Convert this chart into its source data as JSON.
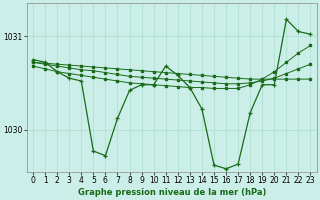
{
  "xlabel": "Graphe pression niveau de la mer (hPa)",
  "bg_color": "#cceee8",
  "line_color": "#1a6b1a",
  "grid_color": "#aaddcc",
  "ylim": [
    1029.55,
    1031.35
  ],
  "xlim": [
    -0.5,
    23.5
  ],
  "yticks": [
    1030,
    1031
  ],
  "xticks": [
    0,
    1,
    2,
    3,
    4,
    5,
    6,
    7,
    8,
    9,
    10,
    11,
    12,
    13,
    14,
    15,
    16,
    17,
    18,
    19,
    20,
    21,
    22,
    23
  ],
  "series_main": [
    1030.75,
    1030.72,
    1030.62,
    1030.55,
    1030.52,
    1029.77,
    1029.72,
    1030.12,
    1030.42,
    1030.48,
    1030.48,
    1030.68,
    1030.58,
    1030.45,
    1030.22,
    1029.62,
    1029.58,
    1029.63,
    1030.18,
    1030.48,
    1030.48,
    1031.18,
    1031.05,
    1031.02
  ],
  "series_line1": [
    1030.72,
    1030.71,
    1030.7,
    1030.69,
    1030.68,
    1030.67,
    1030.66,
    1030.65,
    1030.64,
    1030.63,
    1030.62,
    1030.61,
    1030.6,
    1030.59,
    1030.58,
    1030.57,
    1030.56,
    1030.55,
    1030.54,
    1030.54,
    1030.54,
    1030.54,
    1030.54,
    1030.54
  ],
  "series_line2": [
    1030.72,
    1030.7,
    1030.68,
    1030.66,
    1030.64,
    1030.63,
    1030.61,
    1030.59,
    1030.57,
    1030.56,
    1030.55,
    1030.54,
    1030.53,
    1030.52,
    1030.51,
    1030.5,
    1030.49,
    1030.49,
    1030.5,
    1030.52,
    1030.55,
    1030.6,
    1030.65,
    1030.7
  ],
  "series_line3": [
    1030.68,
    1030.65,
    1030.62,
    1030.6,
    1030.58,
    1030.56,
    1030.54,
    1030.52,
    1030.5,
    1030.49,
    1030.48,
    1030.47,
    1030.46,
    1030.45,
    1030.45,
    1030.44,
    1030.44,
    1030.44,
    1030.48,
    1030.54,
    1030.62,
    1030.72,
    1030.82,
    1030.9
  ]
}
